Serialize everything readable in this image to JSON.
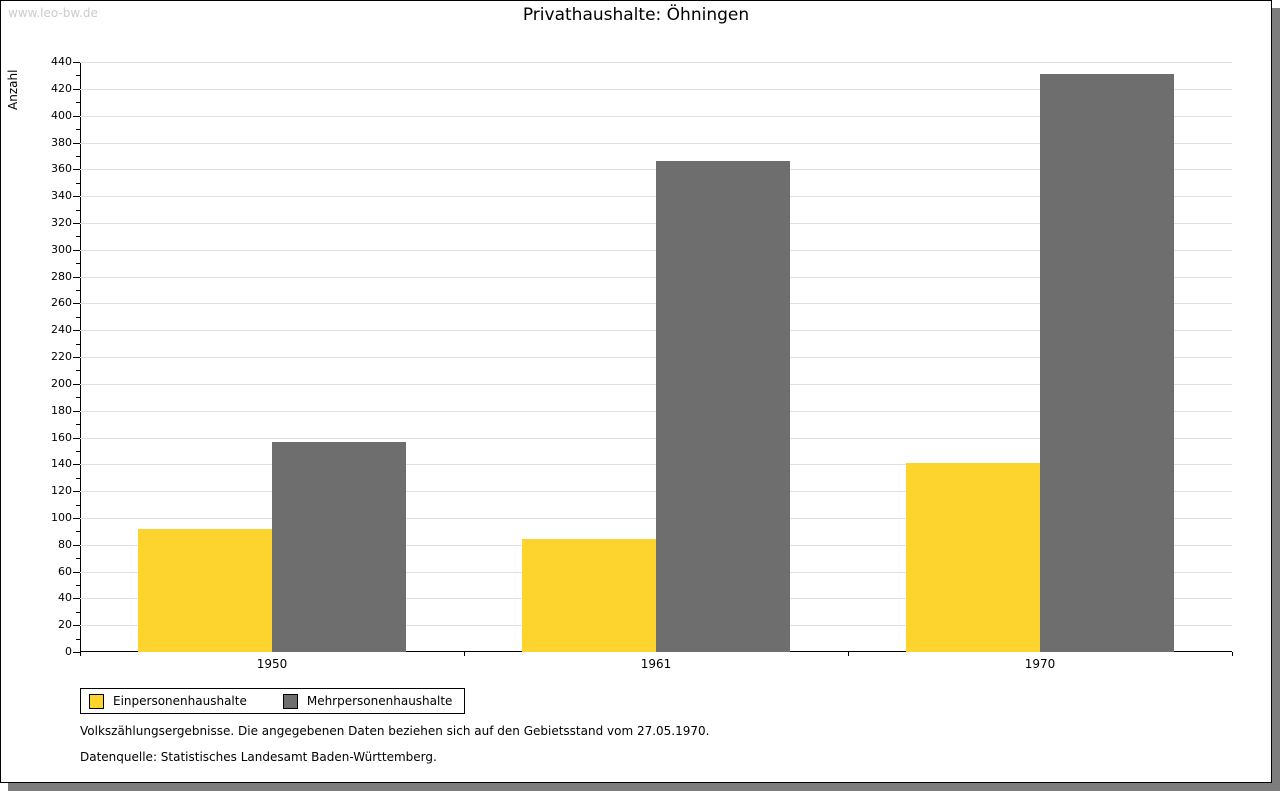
{
  "watermark": "www.leo-bw.de",
  "title": "Privathaushalte: Öhningen",
  "chart_data": {
    "type": "bar",
    "title": "Privathaushalte: Öhningen",
    "categories": [
      "1950",
      "1961",
      "1970"
    ],
    "series": [
      {
        "name": "Einpersonenhaushalte",
        "color": "#FCD42D",
        "values": [
          92,
          84,
          141
        ]
      },
      {
        "name": "Mehrpersonenhaushalte",
        "color": "#6E6E6E",
        "values": [
          157,
          366,
          431
        ]
      }
    ],
    "xlabel": "",
    "ylabel": "Anzahl",
    "ylim": [
      0,
      440
    ],
    "yticks": {
      "major_step": 20,
      "minor_step": 10
    },
    "grid": "horizontal-major",
    "gridline_color": "#e0e0e0",
    "legend_position": "bottom-left"
  },
  "footer": {
    "line1": "Volkszählungsergebnisse. Die angegebenen Daten beziehen sich auf den Gebietsstand vom 27.05.1970.",
    "line2": "Datenquelle: Statistisches Landesamt Baden-Württemberg."
  }
}
